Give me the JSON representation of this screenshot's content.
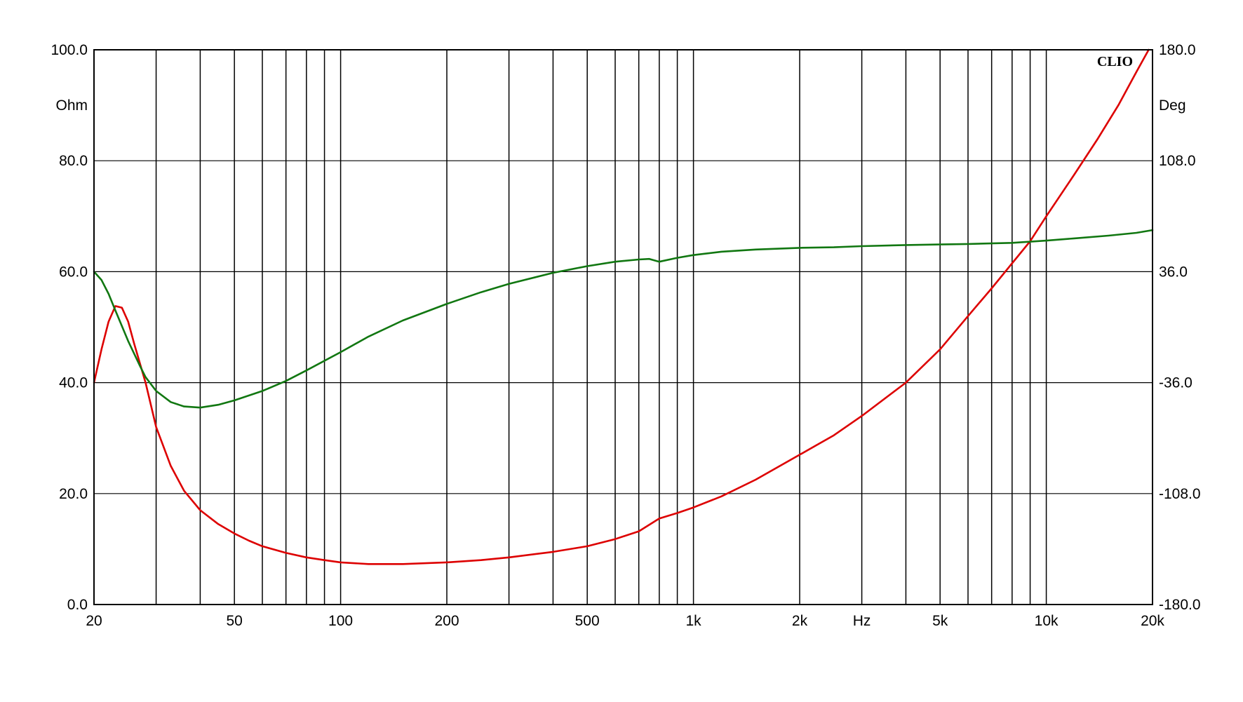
{
  "chart_data": {
    "type": "line",
    "brand": "CLIO",
    "x_scale": "log",
    "x_range": [
      20,
      20000
    ],
    "x_unit_label": "Hz",
    "x_ticks": [
      {
        "value": 20,
        "label": "20"
      },
      {
        "value": 50,
        "label": "50"
      },
      {
        "value": 100,
        "label": "100"
      },
      {
        "value": 200,
        "label": "200"
      },
      {
        "value": 500,
        "label": "500"
      },
      {
        "value": 1000,
        "label": "1k"
      },
      {
        "value": 2000,
        "label": "2k"
      },
      {
        "value": 5000,
        "label": "5k"
      },
      {
        "value": 10000,
        "label": "10k"
      },
      {
        "value": 20000,
        "label": "20k"
      }
    ],
    "x_unit_position": 3000,
    "y_left": {
      "unit_label": "Ohm",
      "range": [
        0,
        100
      ],
      "ticks": [
        {
          "value": 0,
          "label": "0.0"
        },
        {
          "value": 20,
          "label": "20.0"
        },
        {
          "value": 40,
          "label": "40.0"
        },
        {
          "value": 60,
          "label": "60.0"
        },
        {
          "value": 80,
          "label": "80.0"
        },
        {
          "value": 100,
          "label": "100.0"
        }
      ]
    },
    "y_right": {
      "unit_label": "Deg",
      "range": [
        -180,
        180
      ],
      "ticks": [
        {
          "value": -180,
          "label": "-180.0"
        },
        {
          "value": -108,
          "label": "-108.0"
        },
        {
          "value": -36,
          "label": "-36.0"
        },
        {
          "value": 36,
          "label": "36.0"
        },
        {
          "value": 108,
          "label": "108.0"
        },
        {
          "value": 180,
          "label": "180.0"
        }
      ]
    },
    "grid": true,
    "series": [
      {
        "color": "#dd0000",
        "axis": "left",
        "points": [
          [
            20,
            40
          ],
          [
            21,
            46
          ],
          [
            22,
            51
          ],
          [
            23,
            53.8
          ],
          [
            24,
            53.5
          ],
          [
            25,
            51
          ],
          [
            26,
            47
          ],
          [
            28,
            40
          ],
          [
            30,
            32
          ],
          [
            33,
            25
          ],
          [
            36,
            20.5
          ],
          [
            40,
            17
          ],
          [
            45,
            14.5
          ],
          [
            50,
            12.8
          ],
          [
            55,
            11.5
          ],
          [
            60,
            10.5
          ],
          [
            70,
            9.3
          ],
          [
            80,
            8.5
          ],
          [
            90,
            8.0
          ],
          [
            100,
            7.6
          ],
          [
            120,
            7.3
          ],
          [
            150,
            7.3
          ],
          [
            200,
            7.6
          ],
          [
            250,
            8.0
          ],
          [
            300,
            8.5
          ],
          [
            400,
            9.5
          ],
          [
            500,
            10.5
          ],
          [
            600,
            11.8
          ],
          [
            700,
            13.2
          ],
          [
            800,
            15.5
          ],
          [
            900,
            16.5
          ],
          [
            1000,
            17.5
          ],
          [
            1200,
            19.5
          ],
          [
            1500,
            22.5
          ],
          [
            2000,
            27
          ],
          [
            2500,
            30.5
          ],
          [
            3000,
            34
          ],
          [
            4000,
            40
          ],
          [
            5000,
            46
          ],
          [
            6000,
            52
          ],
          [
            7000,
            57
          ],
          [
            8000,
            61.5
          ],
          [
            9000,
            65.5
          ],
          [
            10000,
            70
          ],
          [
            12000,
            77.5
          ],
          [
            14000,
            84
          ],
          [
            16000,
            90
          ],
          [
            18000,
            96
          ],
          [
            19500,
            100
          ]
        ]
      },
      {
        "color": "#117711",
        "axis": "left",
        "points": [
          [
            20,
            60
          ],
          [
            21,
            58.5
          ],
          [
            22,
            56
          ],
          [
            23,
            53
          ],
          [
            25,
            47.5
          ],
          [
            27,
            43
          ],
          [
            28,
            41
          ],
          [
            30,
            38.5
          ],
          [
            33,
            36.5
          ],
          [
            36,
            35.7
          ],
          [
            40,
            35.5
          ],
          [
            45,
            36
          ],
          [
            50,
            36.8
          ],
          [
            60,
            38.5
          ],
          [
            70,
            40.3
          ],
          [
            80,
            42.2
          ],
          [
            100,
            45.5
          ],
          [
            120,
            48.3
          ],
          [
            150,
            51.2
          ],
          [
            200,
            54.2
          ],
          [
            250,
            56.3
          ],
          [
            300,
            57.8
          ],
          [
            400,
            59.8
          ],
          [
            500,
            61
          ],
          [
            600,
            61.8
          ],
          [
            700,
            62.2
          ],
          [
            750,
            62.3
          ],
          [
            800,
            61.8
          ],
          [
            900,
            62.5
          ],
          [
            1000,
            63
          ],
          [
            1200,
            63.6
          ],
          [
            1500,
            64
          ],
          [
            2000,
            64.3
          ],
          [
            2500,
            64.4
          ],
          [
            3000,
            64.6
          ],
          [
            4000,
            64.8
          ],
          [
            5000,
            64.9
          ],
          [
            6000,
            65
          ],
          [
            8000,
            65.2
          ],
          [
            10000,
            65.6
          ],
          [
            12000,
            66
          ],
          [
            15000,
            66.5
          ],
          [
            18000,
            67
          ],
          [
            20000,
            67.5
          ]
        ]
      }
    ]
  }
}
